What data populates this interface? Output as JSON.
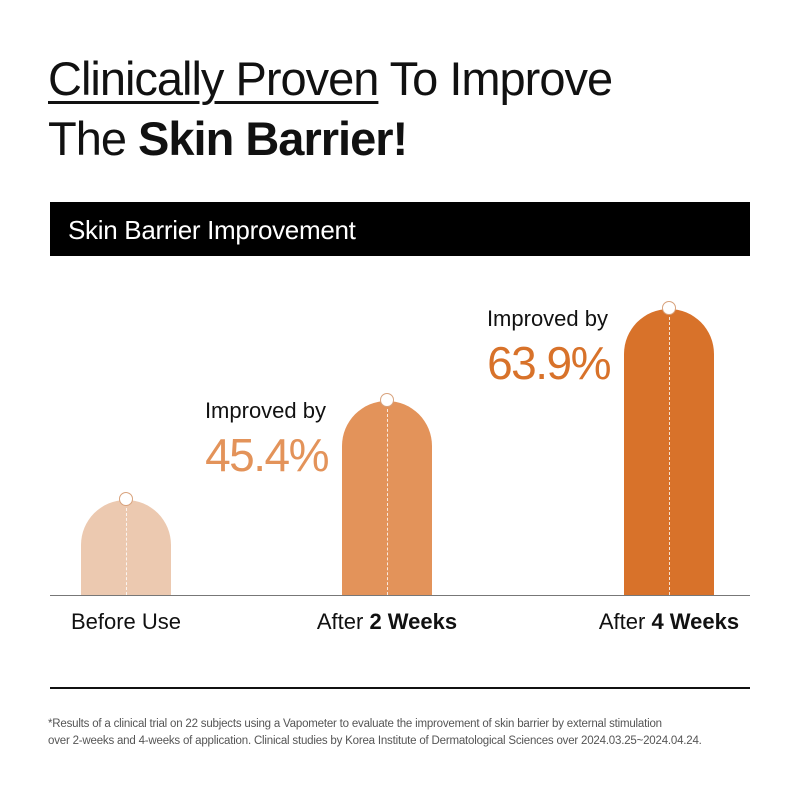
{
  "heading": {
    "line1_underlined": "Clinically Proven",
    "line1_rest": " To Improve",
    "line2_plain": "The ",
    "line2_bold": "Skin Barrier!"
  },
  "section_title": "Skin Barrier Improvement",
  "chart_data": {
    "type": "bar",
    "categories": [
      "Before Use",
      "After 2 Weeks",
      "After 4 Weeks"
    ],
    "category_parts": [
      {
        "plain": "Before Use",
        "bold": ""
      },
      {
        "plain": "After ",
        "bold": "2 Weeks"
      },
      {
        "plain": "After ",
        "bold": "4 Weeks"
      }
    ],
    "improvement_percent": [
      null,
      45.4,
      63.9
    ],
    "annotations": [
      null,
      {
        "label": "Improved by",
        "value": "45.4%"
      },
      {
        "label": "Improved by",
        "value": "63.9%"
      }
    ],
    "colors": [
      "#ecc9b0",
      "#e3935a",
      "#d8722a"
    ]
  },
  "footnote": [
    "*Results of a clinical trial on 22 subjects using a Vapometer to evaluate the improvement of skin barrier by external stimulation",
    "over 2-weeks and 4-weeks of application. Clinical studies by Korea Institute of Dermatological Sciences over 2024.03.25~2024.04.24."
  ]
}
